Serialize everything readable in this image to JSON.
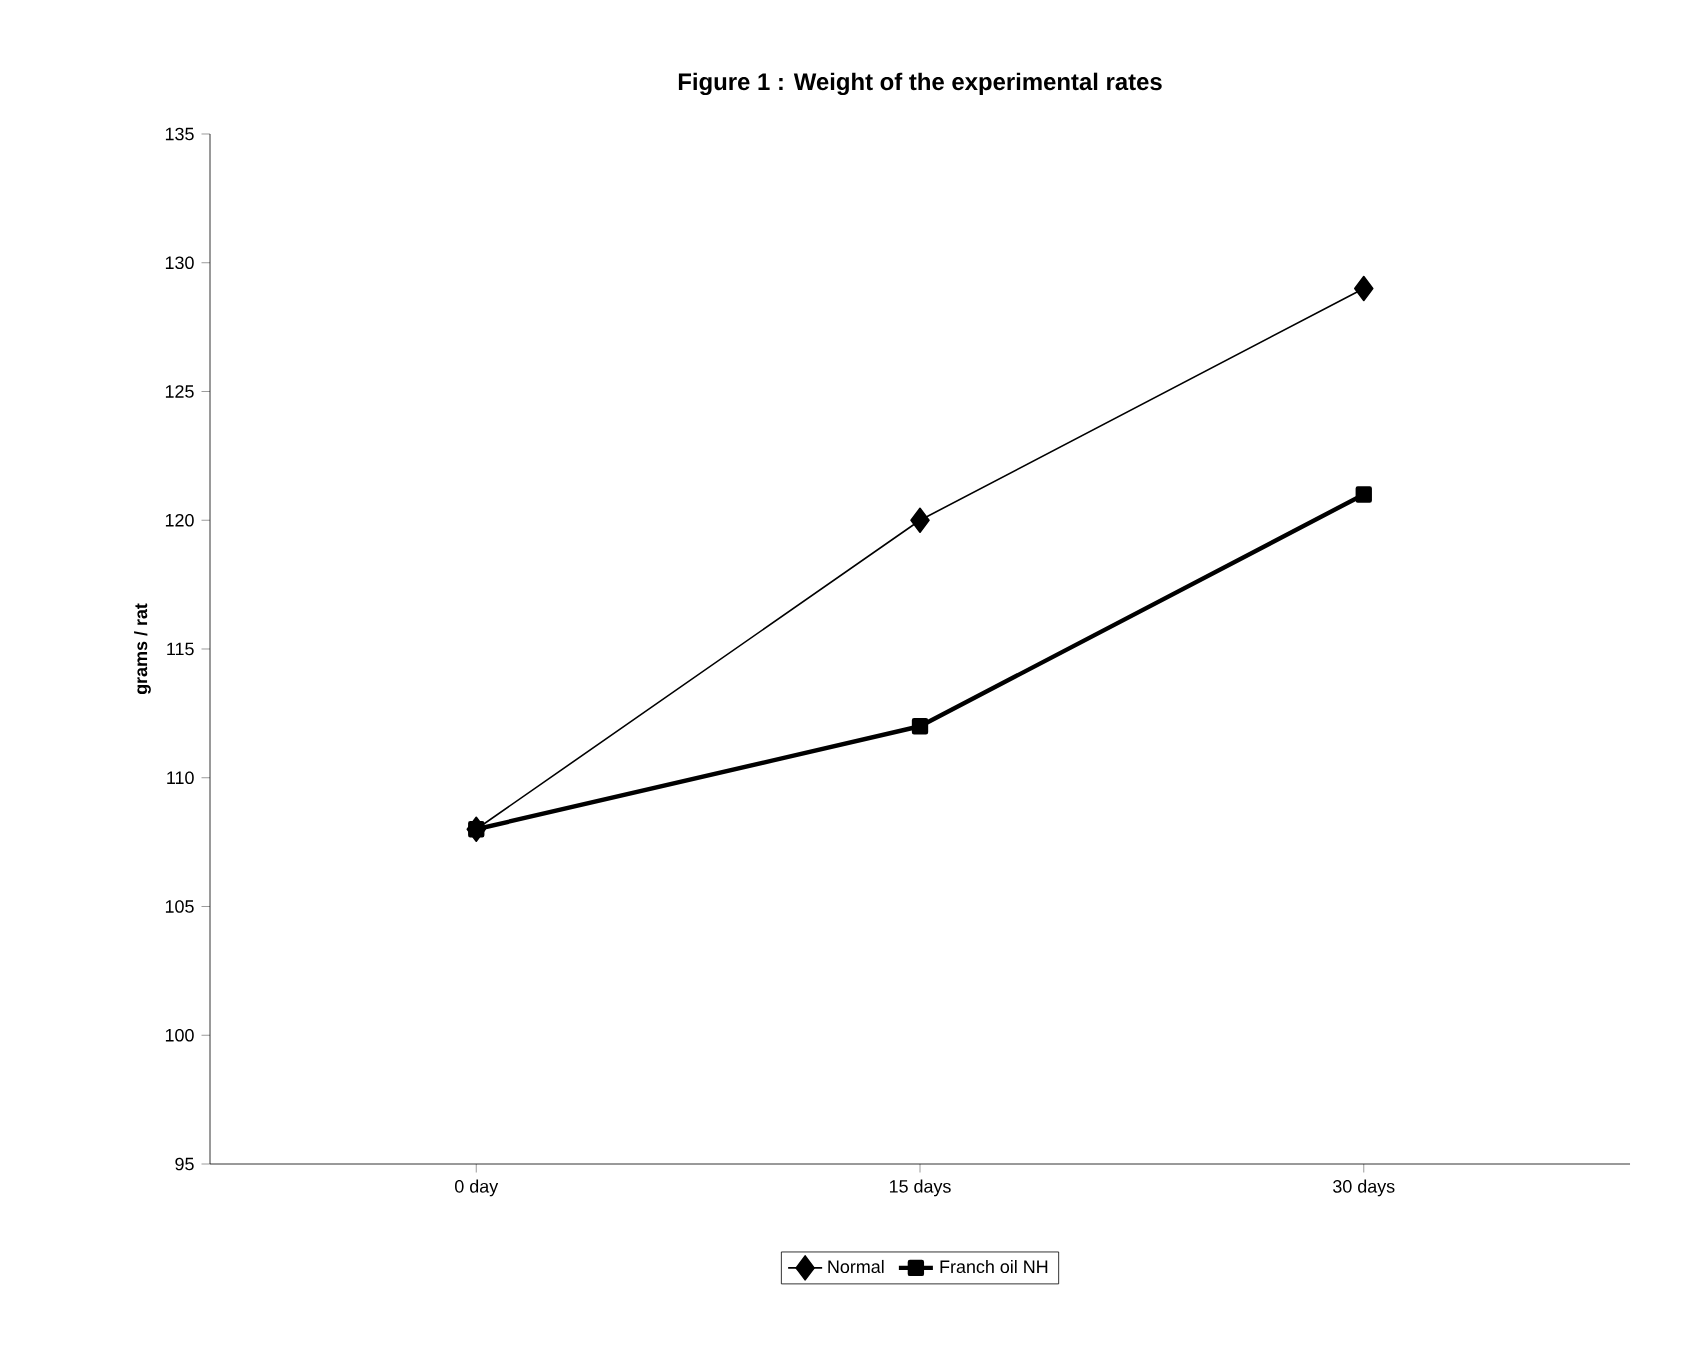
{
  "chart_data": {
    "type": "line",
    "title": "Figure 1 : Weight of the experimental rates",
    "ylabel": "grams / rat",
    "categories": [
      "0 day",
      "15 days",
      "30 days"
    ],
    "series": [
      {
        "name": "Normal",
        "color": "#000000",
        "values": [
          108,
          120,
          129
        ],
        "marker": "diamond"
      },
      {
        "name": "Franch oil NH",
        "color": "#000000",
        "values": [
          108,
          112,
          121
        ],
        "marker": "square"
      }
    ],
    "ylim": [
      95,
      135
    ],
    "yticks": [
      95,
      100,
      105,
      110,
      115,
      120,
      125,
      130,
      135
    ],
    "legend": "bottom",
    "grid": false
  }
}
